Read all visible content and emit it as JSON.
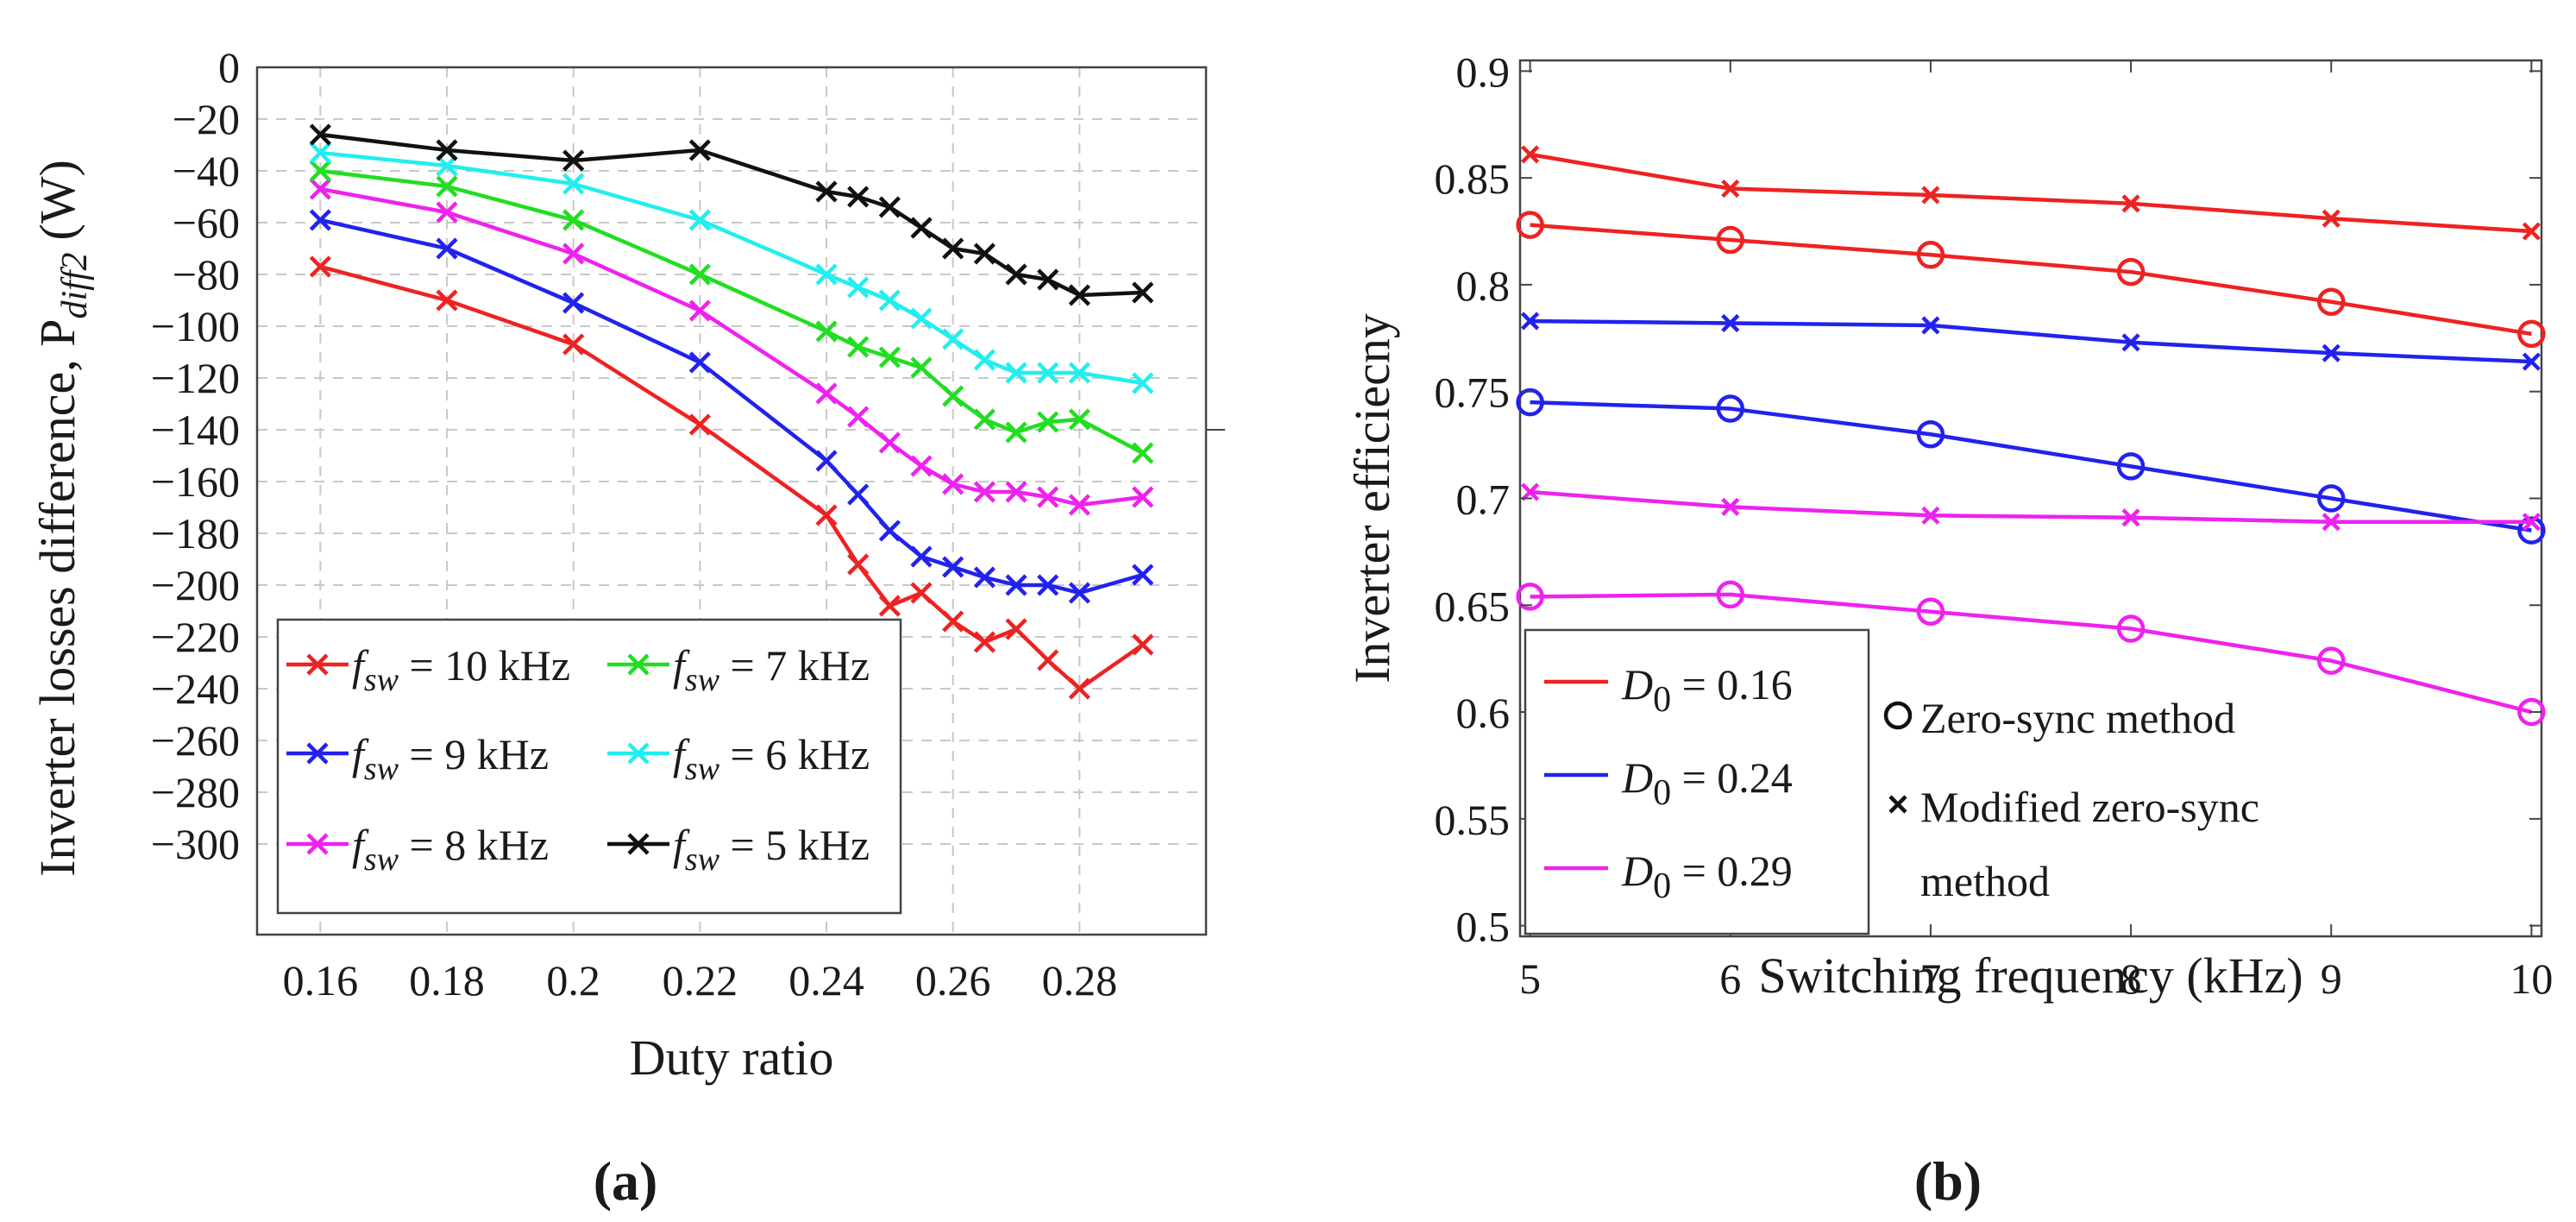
{
  "chart_data": [
    {
      "panel": "(a)",
      "type": "line",
      "xlabel": "Duty ratio",
      "ylabel": "Inverter losses difference, P",
      "ylabel_subscript": "diff2",
      "ylabel_unit": "(W)",
      "xlim": [
        0.15,
        0.3
      ],
      "ylim": [
        -335,
        0
      ],
      "xticks": [
        0.16,
        0.18,
        0.2,
        0.22,
        0.24,
        0.26,
        0.28
      ],
      "xtick_labels": [
        "0.16",
        "0.18",
        "0.2",
        "0.22",
        "0.24",
        "0.26",
        "0.28"
      ],
      "yticks": [
        0,
        -20,
        -40,
        -60,
        -80,
        -100,
        -120,
        -140,
        -160,
        -180,
        -200,
        -220,
        -240,
        -260,
        -280,
        -300
      ],
      "ytick_labels": [
        "0",
        "−20",
        "−40",
        "−60",
        "−80",
        "−100",
        "−120",
        "−140",
        "−160",
        "−180",
        "−200",
        "−220",
        "−240",
        "−260",
        "−280",
        "−300"
      ],
      "grid": true,
      "legend_position": "bottom-left",
      "legend_var": "f",
      "legend_sub": "sw",
      "x": [
        0.16,
        0.18,
        0.2,
        0.22,
        0.24,
        0.245,
        0.25,
        0.255,
        0.26,
        0.265,
        0.27,
        0.275,
        0.28,
        0.29
      ],
      "series": [
        {
          "name": "= 10 kHz",
          "color": "#ee2222",
          "marker": "x",
          "values": [
            -77,
            -90,
            -107,
            -138,
            -173,
            -192,
            -208,
            -203,
            -214,
            -222,
            -217,
            -229,
            -240,
            -223
          ]
        },
        {
          "name": "= 9 kHz",
          "color": "#2222ee",
          "marker": "x",
          "values": [
            -59,
            -70,
            -91,
            -114,
            -152,
            -165,
            -179,
            -189,
            -193,
            -197,
            -200,
            -200,
            -203,
            -196
          ]
        },
        {
          "name": "= 8 kHz",
          "color": "#ee22ee",
          "marker": "x",
          "values": [
            -47,
            -56,
            -72,
            -94,
            -126,
            -135,
            -145,
            -154,
            -161,
            -164,
            -164,
            -166,
            -169,
            -166
          ]
        },
        {
          "name": "= 7 kHz",
          "color": "#22dd22",
          "marker": "x",
          "values": [
            -40,
            -46,
            -59,
            -80,
            -102,
            -108,
            -112,
            -116,
            -127,
            -136,
            -141,
            -137,
            -136,
            -149
          ]
        },
        {
          "name": "= 6 kHz",
          "color": "#22eeee",
          "marker": "x",
          "values": [
            -33,
            -38,
            -45,
            -59,
            -80,
            -85,
            -90,
            -97,
            -105,
            -113,
            -118,
            -118,
            -118,
            -122
          ]
        },
        {
          "name": "= 5 kHz",
          "color": "#111111",
          "marker": "x",
          "values": [
            -26,
            -32,
            -36,
            -32,
            -48,
            -50,
            -54,
            -62,
            -70,
            -72,
            -80,
            -82,
            -88,
            -87
          ]
        }
      ]
    },
    {
      "panel": "(b)",
      "type": "line",
      "xlabel": "Switching frequency (kHz)",
      "ylabel": "Inverter efficiecny",
      "xlim": [
        4.95,
        10.05
      ],
      "ylim": [
        0.495,
        0.905
      ],
      "xticks": [
        5,
        6,
        7,
        8,
        9,
        10
      ],
      "xtick_labels": [
        "5",
        "6",
        "7",
        "8",
        "9",
        "10"
      ],
      "yticks": [
        0.9,
        0.85,
        0.8,
        0.75,
        0.7,
        0.65,
        0.6,
        0.55,
        0.5
      ],
      "ytick_labels": [
        "0.9",
        "0.85",
        "0.8",
        "0.75",
        "0.7",
        "0.65",
        "0.6",
        "0.55",
        "0.5"
      ],
      "grid": false,
      "legend_position": "bottom-left",
      "x": [
        5,
        6,
        7,
        8,
        9,
        10
      ],
      "series": [
        {
          "name": "= 0.16",
          "color": "#ee2222",
          "method": "Modified zero-sync method",
          "marker": "x",
          "values": [
            0.861,
            0.845,
            0.842,
            0.838,
            0.831,
            0.825
          ]
        },
        {
          "name": "= 0.16",
          "color": "#ee2222",
          "method": "Zero-sync method",
          "marker": "o",
          "values": [
            0.828,
            0.821,
            0.814,
            0.806,
            0.792,
            0.777
          ]
        },
        {
          "name": "= 0.24",
          "color": "#2222ee",
          "method": "Modified zero-sync method",
          "marker": "x",
          "values": [
            0.783,
            0.782,
            0.781,
            0.773,
            0.768,
            0.764
          ]
        },
        {
          "name": "= 0.24",
          "color": "#2222ee",
          "method": "Zero-sync method",
          "marker": "o",
          "values": [
            0.745,
            0.742,
            0.73,
            0.715,
            0.7,
            0.685
          ]
        },
        {
          "name": "= 0.29",
          "color": "#ee22ee",
          "method": "Modified zero-sync method",
          "marker": "x",
          "values": [
            0.703,
            0.696,
            0.692,
            0.691,
            0.689,
            0.689
          ]
        },
        {
          "name": "= 0.29",
          "color": "#ee22ee",
          "method": "Zero-sync method",
          "marker": "o",
          "values": [
            0.654,
            0.655,
            0.647,
            0.639,
            0.624,
            0.6
          ]
        }
      ],
      "legend_colors": [
        {
          "var": "D",
          "sub": "0",
          "label": "= 0.16",
          "color": "#ee2222"
        },
        {
          "var": "D",
          "sub": "0",
          "label": "= 0.24",
          "color": "#2222ee"
        },
        {
          "var": "D",
          "sub": "0",
          "label": "= 0.29",
          "color": "#ee22ee"
        }
      ],
      "legend_markers": [
        {
          "marker": "o",
          "lines": [
            "Zero-sync method"
          ]
        },
        {
          "marker": "x",
          "lines": [
            "Modified zero-sync",
            "method"
          ]
        }
      ]
    }
  ]
}
